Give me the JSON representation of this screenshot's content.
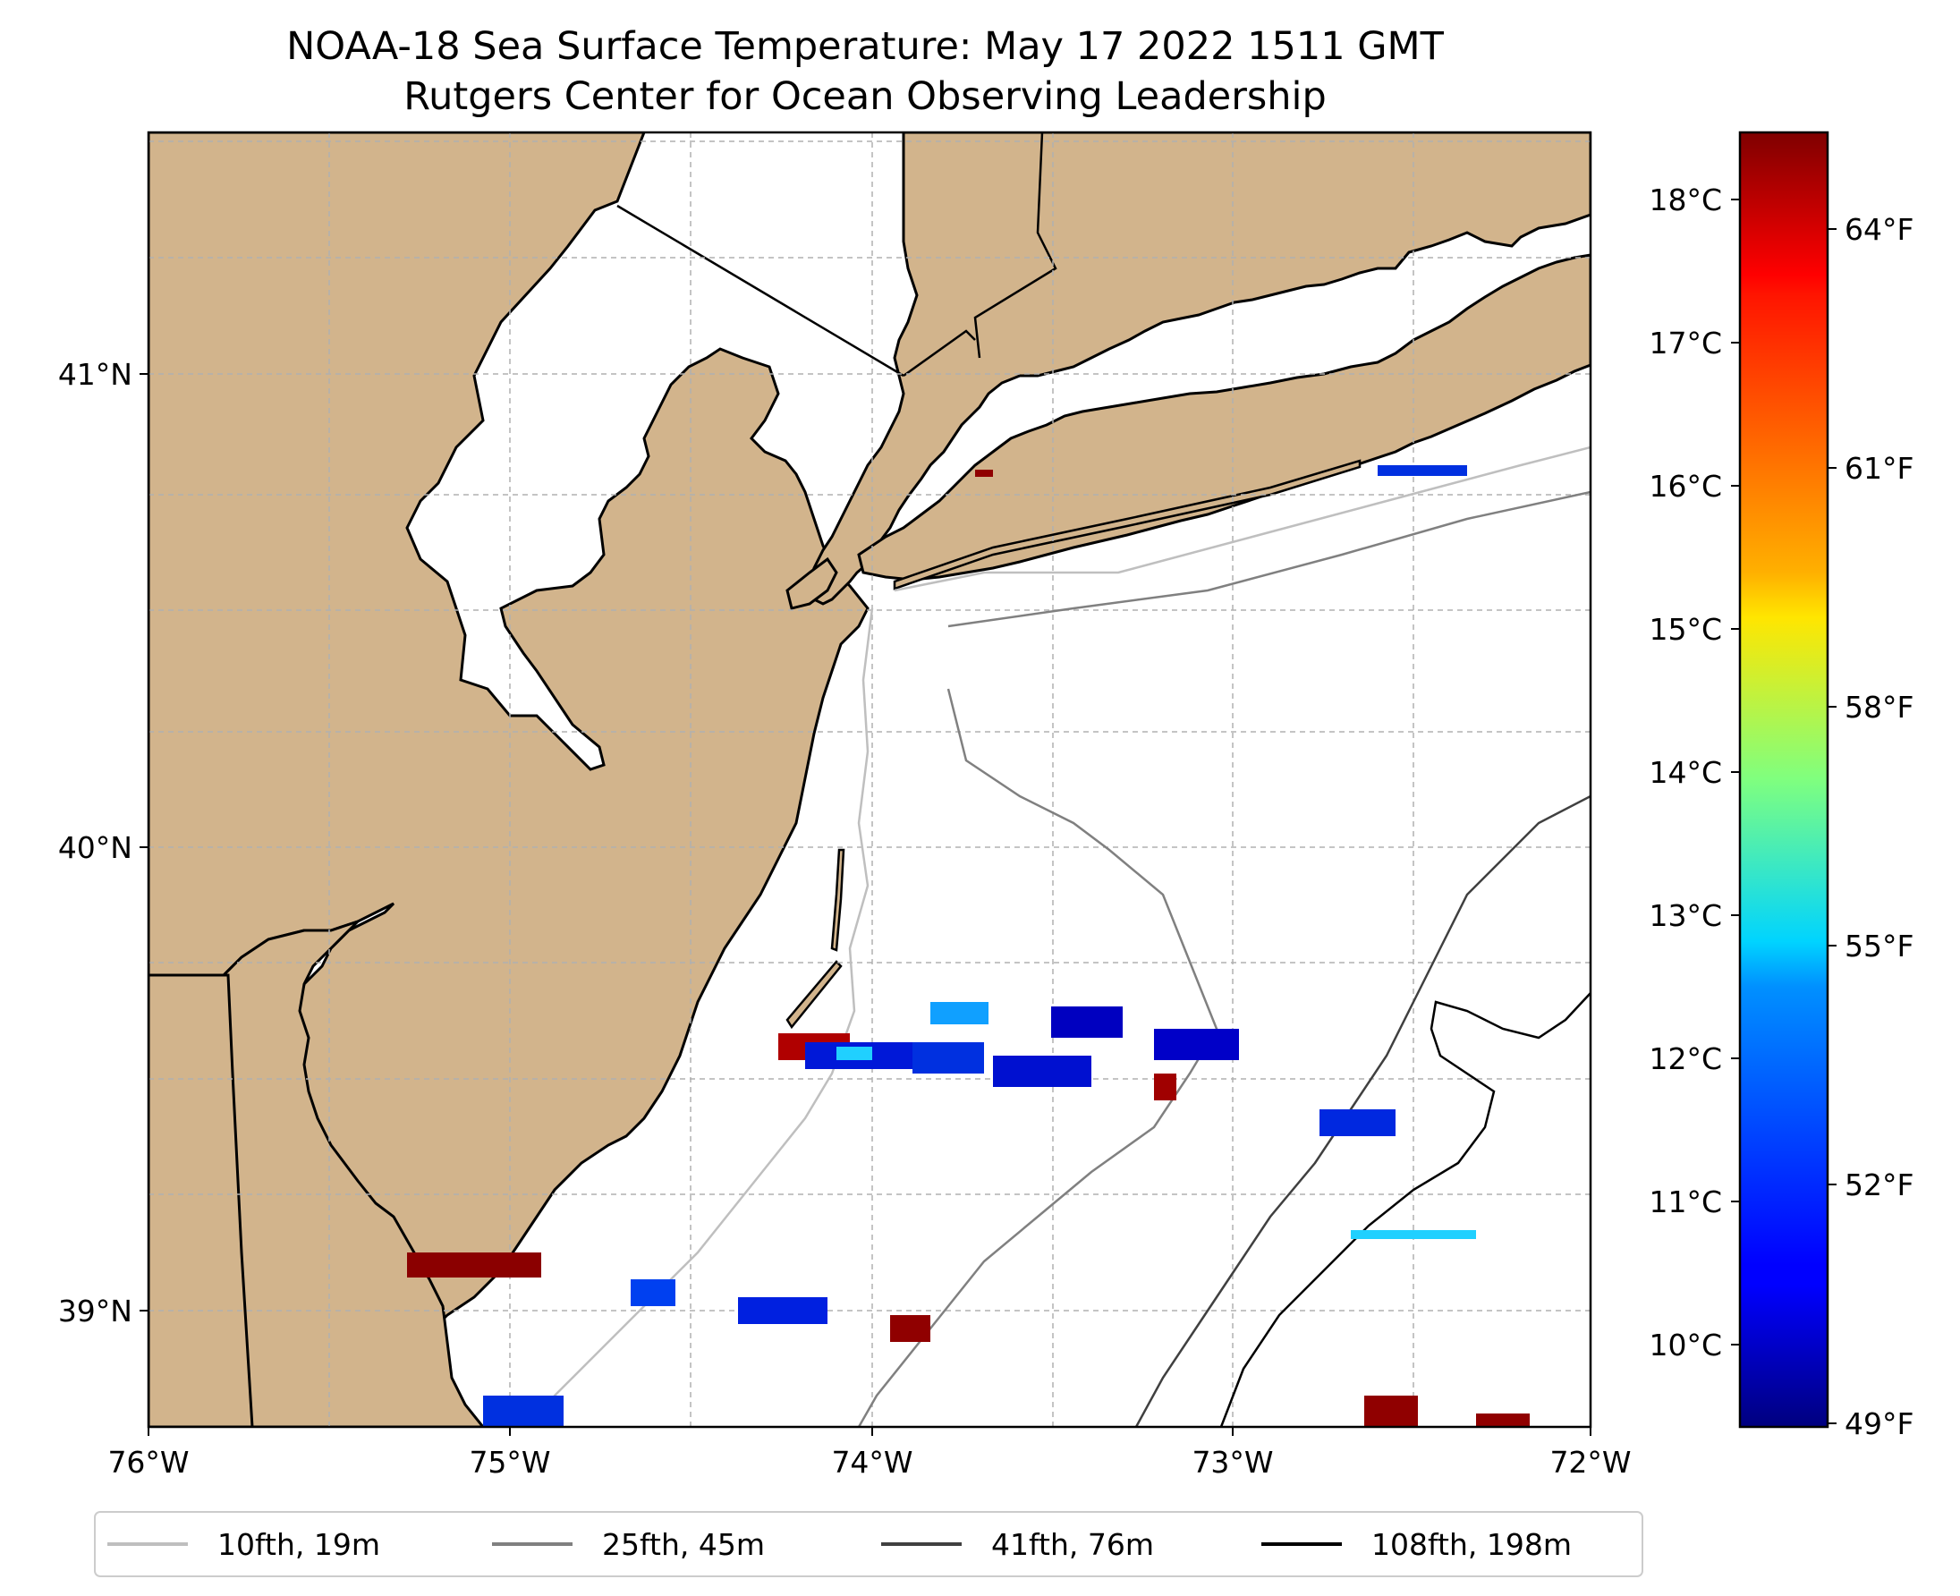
{
  "title": {
    "line1": "NOAA-18 Sea Surface Temperature: May 17 2022 1511 GMT",
    "line2": "Rutgers Center for Ocean Observing Leadership"
  },
  "map": {
    "lon_range": [
      -76,
      -72
    ],
    "lat_range": [
      38.7,
      41.5
    ],
    "land_color": "#D2B48C",
    "water_color": "#ffffff",
    "coast_color": "#000000",
    "gridlines": true,
    "x_ticks": [
      "76°W",
      "75°W",
      "74°W",
      "73°W",
      "72°W"
    ],
    "y_ticks": [
      "39°N",
      "40°N",
      "41°N"
    ]
  },
  "colorbar": {
    "colormap": "jet",
    "celsius_ticks": [
      "10°C",
      "11°C",
      "12°C",
      "13°C",
      "14°C",
      "15°C",
      "16°C",
      "17°C",
      "18°C"
    ],
    "fahrenheit_ticks": [
      "49°F",
      "52°F",
      "55°F",
      "58°F",
      "61°F",
      "64°F"
    ],
    "range_f": [
      49,
      65
    ]
  },
  "legend": {
    "placement": "bottom",
    "items": [
      {
        "label": "10fth, 19m",
        "color": "#bfbfbf"
      },
      {
        "label": "25fth, 45m",
        "color": "#808080"
      },
      {
        "label": "41fth, 76m",
        "color": "#404040"
      },
      {
        "label": "108fth, 198m",
        "color": "#000000"
      }
    ]
  }
}
